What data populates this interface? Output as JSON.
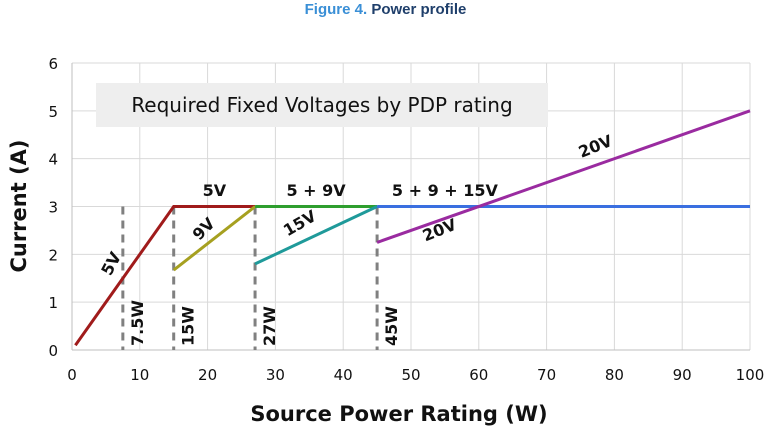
{
  "figure": {
    "number": "Figure 4.",
    "caption": "Power profile"
  },
  "chart_data": {
    "type": "line",
    "title": "Required Fixed Voltages by PDP rating",
    "xlabel": "Source Power Rating (W)",
    "ylabel": "Current (A)",
    "xlim": [
      0,
      100
    ],
    "ylim": [
      0,
      6
    ],
    "xticks": [
      0,
      10,
      20,
      30,
      40,
      50,
      60,
      70,
      80,
      90,
      100
    ],
    "yticks": [
      0,
      1,
      2,
      3,
      4,
      5,
      6
    ],
    "grid": true,
    "legend": "none",
    "colors": {
      "5V": "#a01b1b",
      "9V": "#a6a020",
      "5+9V": "#2e9e2e",
      "15V": "#1f9a9a",
      "20V": "#9a2ba0",
      "limit": "#3a6fe0",
      "marker": "#808080"
    },
    "series": [
      {
        "key": "s5v",
        "color": "#a01b1b",
        "points": [
          [
            0.5,
            0.1
          ],
          [
            15,
            3
          ],
          [
            27,
            3
          ]
        ]
      },
      {
        "key": "s9v",
        "color": "#a6a020",
        "points": [
          [
            15,
            1.67
          ],
          [
            27,
            3
          ]
        ]
      },
      {
        "key": "s59v",
        "color": "#2e9e2e",
        "points": [
          [
            27,
            3
          ],
          [
            45,
            3
          ]
        ]
      },
      {
        "key": "s15v",
        "color": "#1f9a9a",
        "points": [
          [
            27,
            1.8
          ],
          [
            45,
            3
          ]
        ]
      },
      {
        "key": "s5915v",
        "color": "#3a6fe0",
        "points": [
          [
            45,
            3
          ],
          [
            100,
            3
          ]
        ]
      },
      {
        "key": "s20v",
        "color": "#9a2ba0",
        "points": [
          [
            45,
            2.25
          ],
          [
            100,
            5
          ]
        ]
      }
    ],
    "markers": [
      {
        "x": 7.5,
        "label": "7.5W"
      },
      {
        "x": 15,
        "label": "15W"
      },
      {
        "x": 27,
        "label": "27W"
      },
      {
        "x": 45,
        "label": "45W"
      }
    ],
    "annotations": [
      {
        "text": "5V",
        "x": 6.5,
        "y": 1.75,
        "angle": -62
      },
      {
        "text": "5V",
        "x": 21,
        "y": 3.22,
        "angle": 0
      },
      {
        "text": "9V",
        "x": 20,
        "y": 2.45,
        "angle": -45
      },
      {
        "text": "5 + 9V",
        "x": 36,
        "y": 3.22,
        "angle": 0
      },
      {
        "text": "15V",
        "x": 34,
        "y": 2.55,
        "angle": -30
      },
      {
        "text": "5 + 9 + 15V",
        "x": 55,
        "y": 3.22,
        "angle": 0
      },
      {
        "text": "20V",
        "x": 54.5,
        "y": 2.4,
        "angle": -22
      },
      {
        "text": "20V",
        "x": 77.5,
        "y": 4.15,
        "angle": -22
      }
    ]
  }
}
